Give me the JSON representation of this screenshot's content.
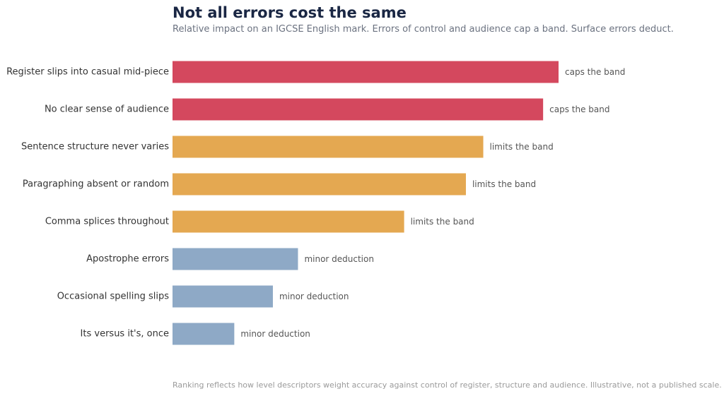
{
  "chart_data": {
    "type": "bar",
    "orientation": "horizontal",
    "title": "Not all errors cost the same",
    "subtitle": "Relative impact on an IGCSE English mark. Errors of control and audience cap a band. Surface errors deduct.",
    "footnote": "Ranking reflects how level descriptors weight accuracy against control of register, structure and audience. Illustrative, not a published scale.",
    "xlim": [
      0,
      100
    ],
    "grid": false,
    "categories": [
      "Register slips into casual mid-piece",
      "No clear sense of audience",
      "Sentence structure never varies",
      "Paragraphing absent or random",
      "Comma splices throughout",
      "Apostrophe errors",
      "Occasional spelling slips",
      "Its versus it's, once"
    ],
    "values": [
      100,
      96,
      80.5,
      76,
      60,
      32.5,
      26,
      16
    ],
    "bar_labels": [
      "caps the band",
      "caps the band",
      "limits the band",
      "limits the band",
      "limits the band",
      "minor deduction",
      "minor deduction",
      "minor deduction"
    ],
    "colors": [
      "#d4485e",
      "#d4485e",
      "#e4a851",
      "#e4a851",
      "#e4a851",
      "#8ea9c6",
      "#8ea9c6",
      "#8ea9c6"
    ]
  }
}
